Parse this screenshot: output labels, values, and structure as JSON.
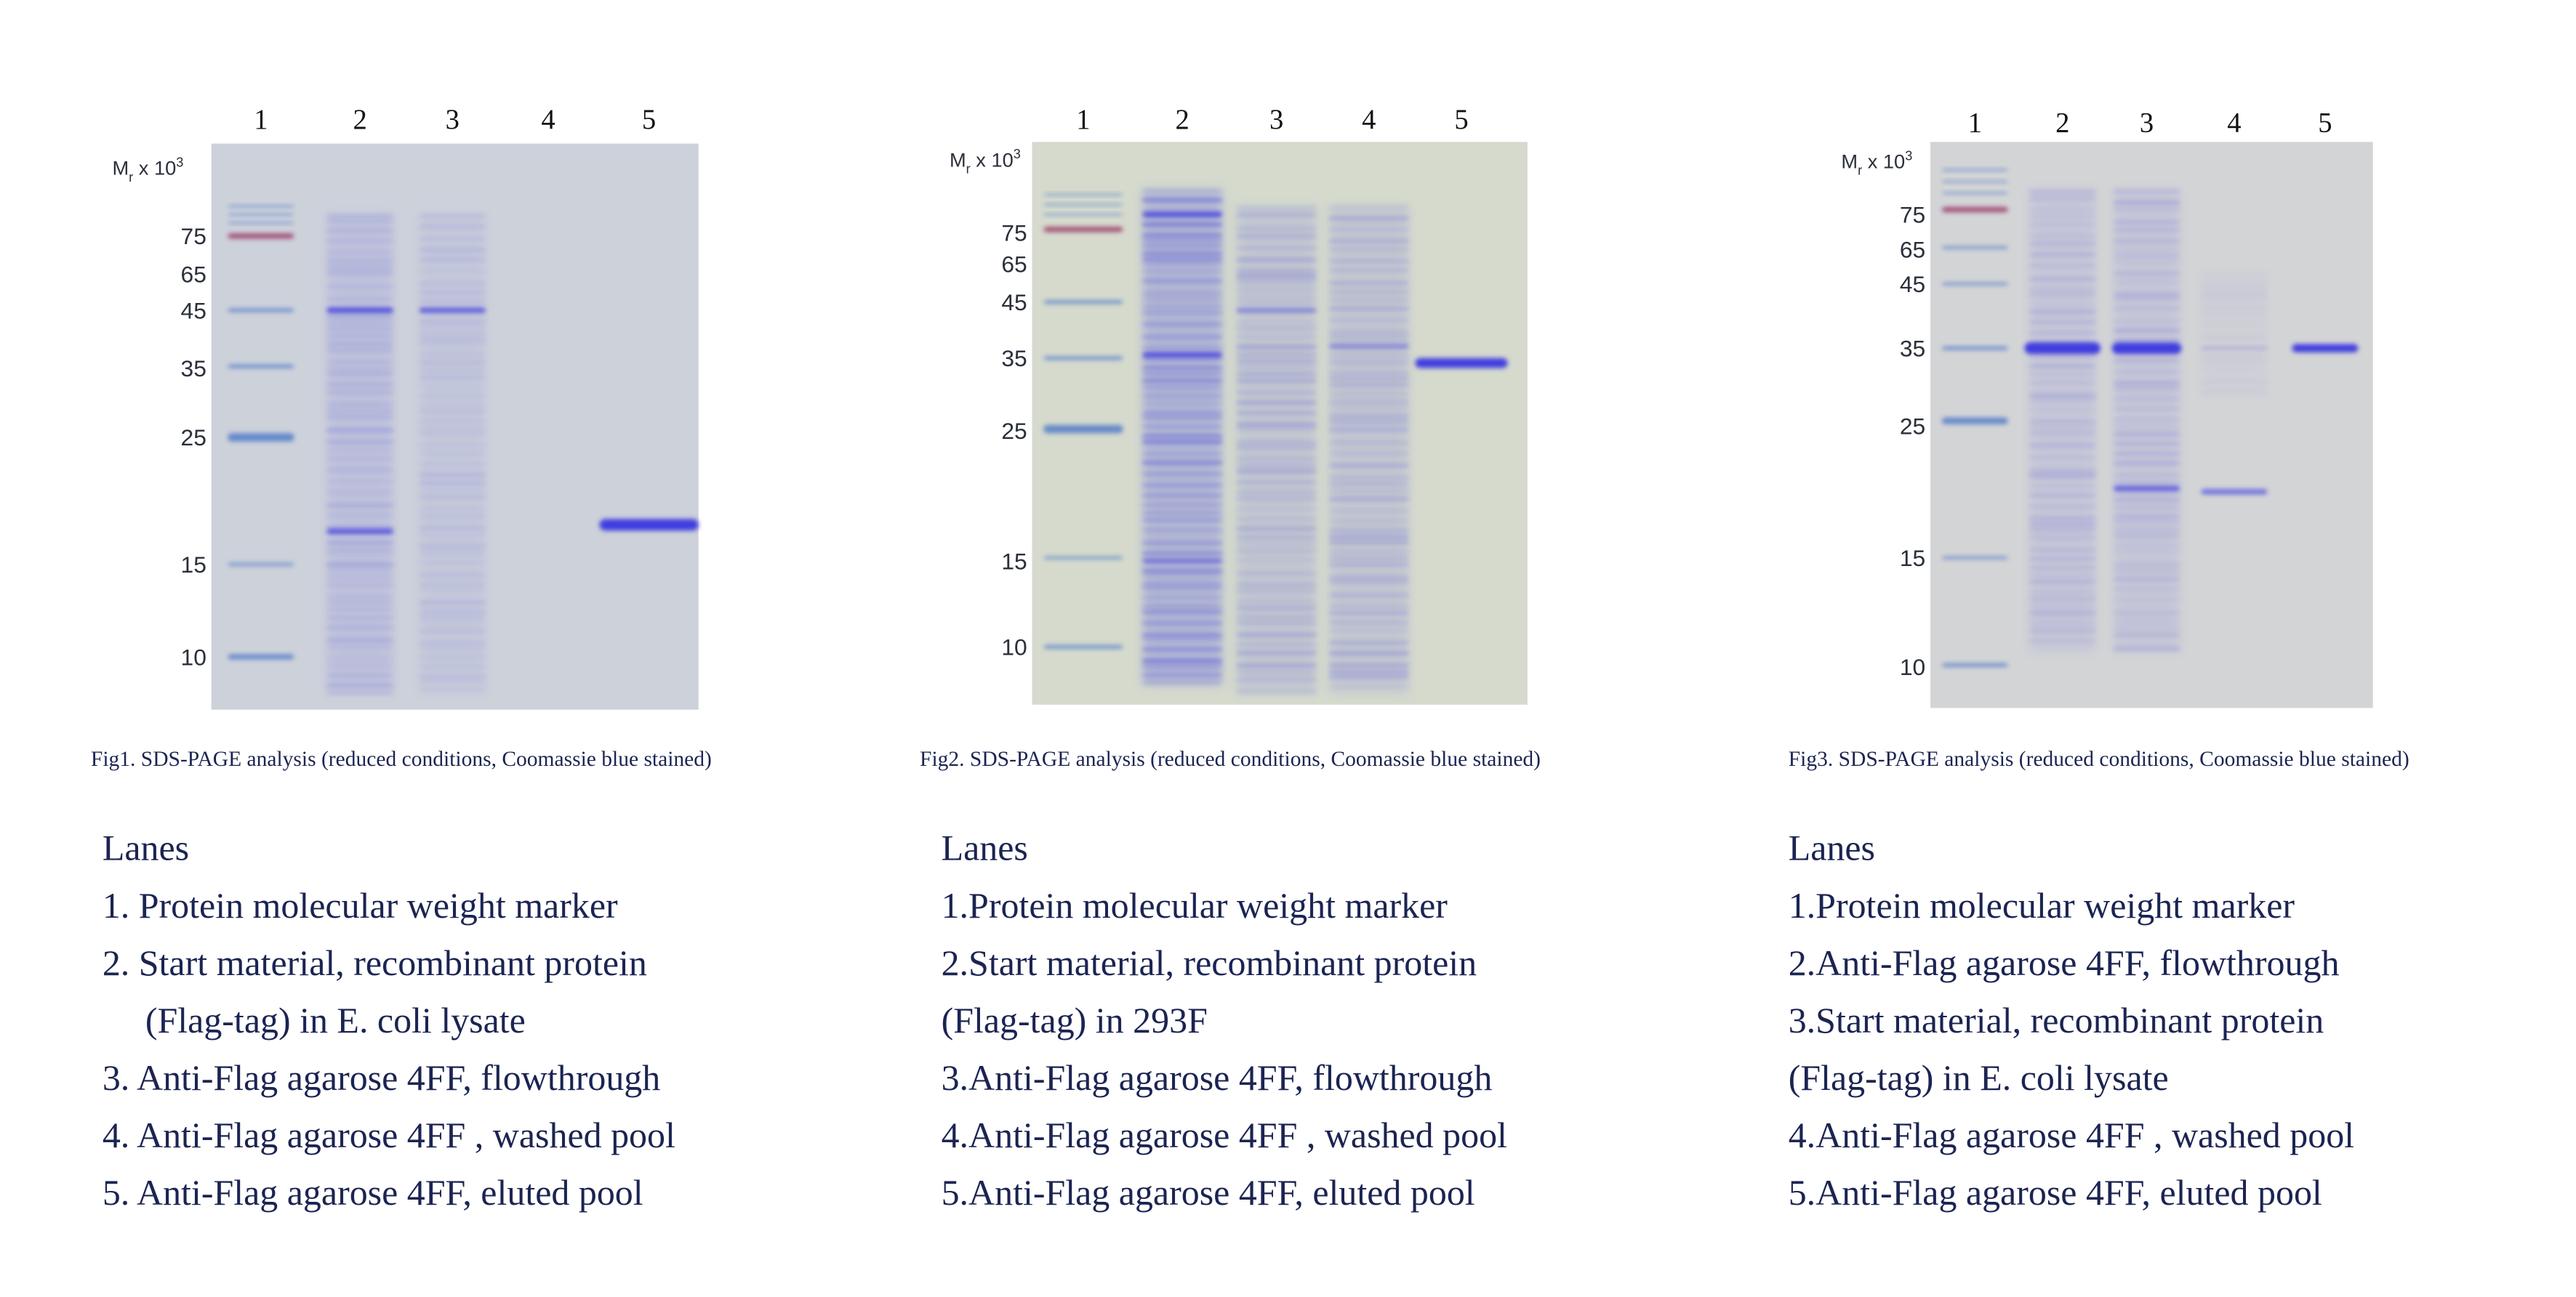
{
  "figures": [
    {
      "lanes": [
        "1",
        "2",
        "3",
        "4",
        "5"
      ],
      "mr_label": {
        "main": "M",
        "sub": "r",
        "mid": " x 10",
        "sup": "3"
      },
      "markers": [
        "75",
        "65",
        "45",
        "35",
        "25",
        "15",
        "10"
      ],
      "caption": "Fig1. SDS-PAGE analysis (reduced conditions, Coomassie blue stained)",
      "legend": {
        "heading": "Lanes",
        "lines": [
          "1. Protein molecular weight marker",
          "2. Start material, recombinant protein",
          "(Flag-tag) in E. coli lysate",
          "3. Anti-Flag agarose 4FF, flowthrough",
          "4. Anti-Flag agarose 4FF , washed pool",
          "5. Anti-Flag agarose 4FF, eluted pool"
        ]
      }
    },
    {
      "lanes": [
        "1",
        "2",
        "3",
        "4",
        "5"
      ],
      "mr_label": {
        "main": "M",
        "sub": "r",
        "mid": " x 10",
        "sup": "3"
      },
      "markers": [
        "75",
        "65",
        "45",
        "35",
        "25",
        "15",
        "10"
      ],
      "caption": "Fig2. SDS-PAGE analysis (reduced conditions, Coomassie blue stained)",
      "legend": {
        "heading": "Lanes",
        "lines": [
          "1.Protein molecular weight marker",
          "2.Start material, recombinant protein",
          "(Flag-tag) in 293F",
          "3.Anti-Flag agarose 4FF, flowthrough",
          "4.Anti-Flag agarose 4FF , washed pool",
          "5.Anti-Flag agarose 4FF, eluted pool"
        ]
      }
    },
    {
      "lanes": [
        "1",
        "2",
        "3",
        "4",
        "5"
      ],
      "mr_label": {
        "main": "M",
        "sub": "r",
        "mid": " x 10",
        "sup": "3"
      },
      "markers": [
        "75",
        "65",
        "45",
        "35",
        "25",
        "15",
        "10"
      ],
      "caption": "Fig3. SDS-PAGE analysis (reduced conditions, Coomassie blue stained)",
      "legend": {
        "heading": "Lanes",
        "lines": [
          "1.Protein molecular weight marker",
          "2.Anti-Flag agarose 4FF, flowthrough",
          "3.Start material, recombinant protein",
          "(Flag-tag) in E. coli lysate",
          "4.Anti-Flag agarose 4FF , washed pool",
          "5.Anti-Flag agarose 4FF, eluted pool"
        ]
      }
    }
  ]
}
